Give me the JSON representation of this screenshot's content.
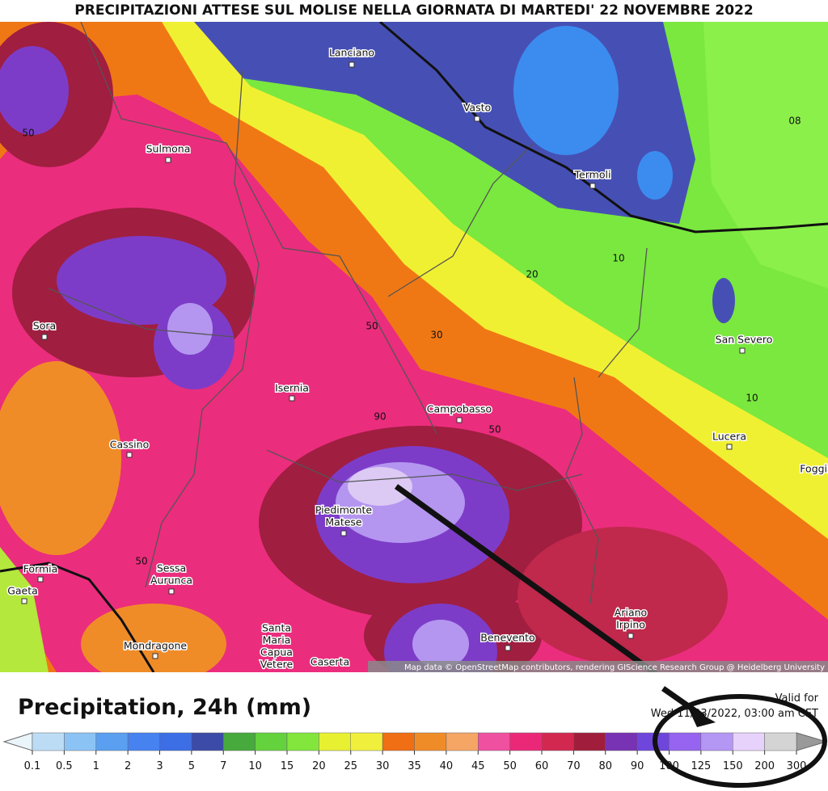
{
  "title": "PRECIPITAZIONI ATTESE SUL MOLISE NELLA GIORNATA DI MARTEDI' 22 NOVEMBRE 2022",
  "map": {
    "cities": [
      {
        "lines": [
          "Lanciano"
        ]
      },
      {
        "lines": [
          "Vasto"
        ]
      },
      {
        "lines": [
          "Termoli"
        ]
      },
      {
        "lines": [
          "Sulmona"
        ]
      },
      {
        "lines": [
          "Sora"
        ]
      },
      {
        "lines": [
          "Isernia"
        ]
      },
      {
        "lines": [
          "Campobasso"
        ]
      },
      {
        "lines": [
          "San Severo"
        ]
      },
      {
        "lines": [
          "Lucera"
        ]
      },
      {
        "lines": [
          "Foggia"
        ]
      },
      {
        "lines": [
          "Cassino"
        ]
      },
      {
        "lines": [
          "Piedimonte",
          "Matese"
        ]
      },
      {
        "lines": [
          "Formia"
        ]
      },
      {
        "lines": [
          "Gaeta"
        ]
      },
      {
        "lines": [
          "Sessa",
          "Aurunca"
        ]
      },
      {
        "lines": [
          "Mondragone"
        ]
      },
      {
        "lines": [
          "Santa",
          "Maria",
          "Capua",
          "Vetere"
        ]
      },
      {
        "lines": [
          "Caserta"
        ]
      },
      {
        "lines": [
          "Benevento"
        ]
      },
      {
        "lines": [
          "Ariano",
          "Irpino"
        ]
      }
    ],
    "contour_labels": [
      "50",
      "10",
      "20",
      "30",
      "50",
      "90",
      "50",
      "50",
      "10",
      "08"
    ],
    "attribution": "Map data © OpenStreetMap contributors, rendering GIScience Research Group @ Heidelberg University"
  },
  "legend": {
    "title": "Precipitation, 24h (mm)",
    "valid_for": "Valid for",
    "valid_time": "Wed 11/23/2022, 03:00 am CET",
    "levels": [
      0.1,
      0.5,
      1,
      2,
      3,
      5,
      7,
      10,
      15,
      20,
      25,
      30,
      35,
      40,
      45,
      50,
      60,
      70,
      80,
      90,
      100,
      125,
      150,
      200,
      300
    ],
    "colors": [
      "#bcdcf5",
      "#8cc3f5",
      "#5a9ff0",
      "#4682f0",
      "#3c6ee6",
      "#3c4ba8",
      "#46aa3c",
      "#64d23c",
      "#82e63c",
      "#e8f032",
      "#f0f03c",
      "#f06e14",
      "#f08c28",
      "#f5a564",
      "#f050a0",
      "#eb2878",
      "#d22850",
      "#a01e3c",
      "#7832b4",
      "#6e46dc",
      "#9664f0",
      "#b496f5",
      "#e6d2fa",
      "#d4d4d4"
    ],
    "under_color": "#eaf4fb",
    "over_color": "#9a9a9a"
  }
}
